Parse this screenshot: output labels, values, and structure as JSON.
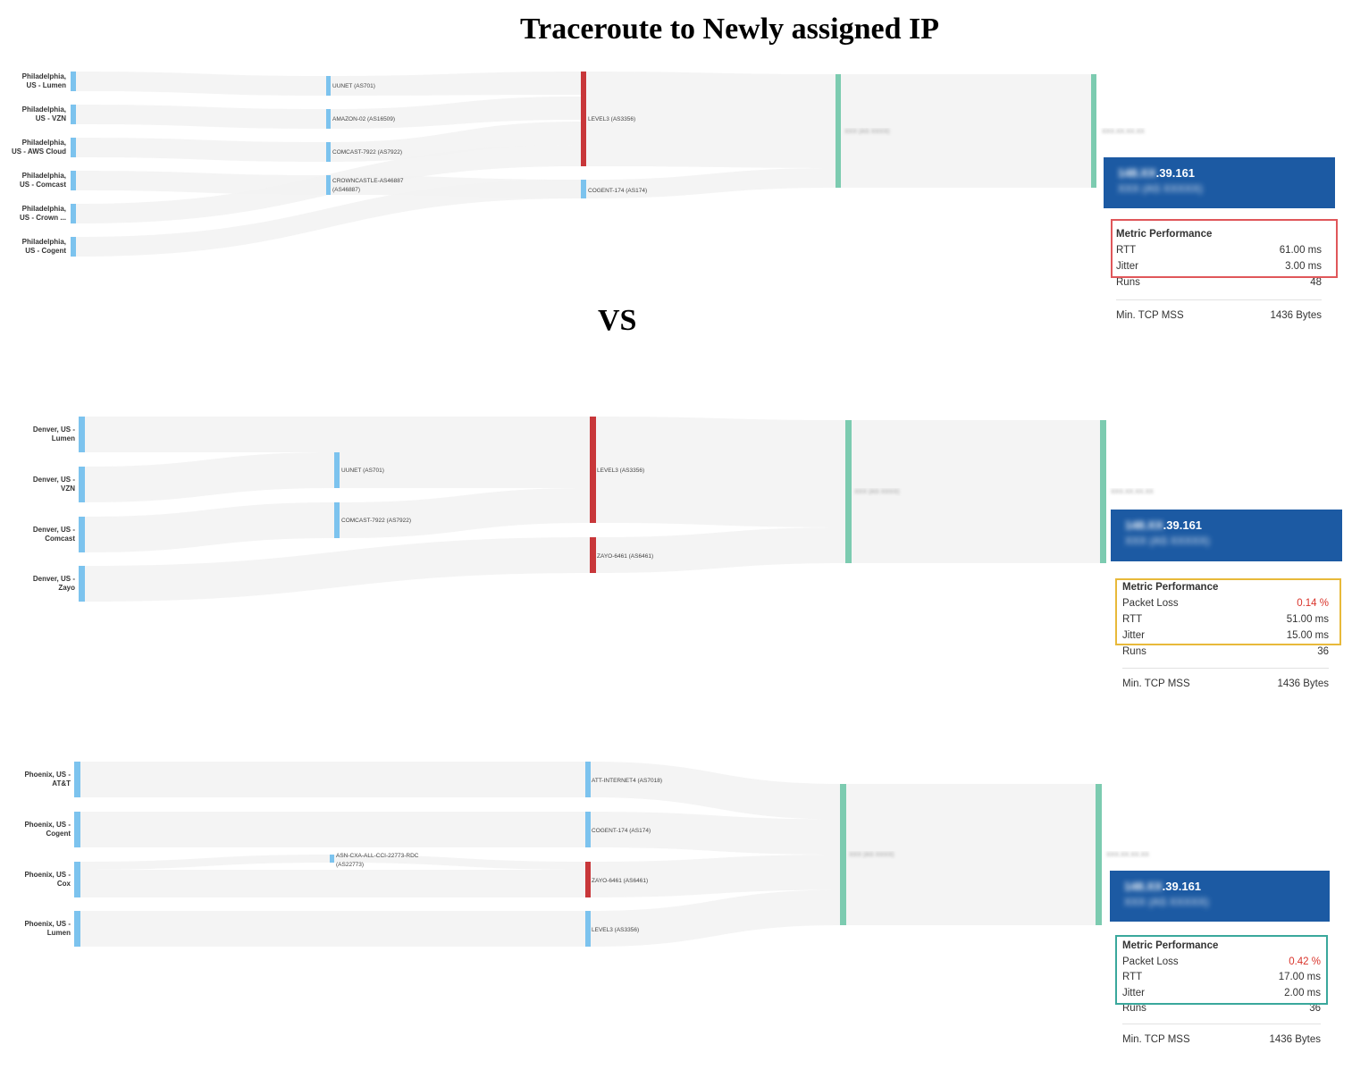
{
  "title": "Traceroute to Newly assigned IP",
  "vs": "VS",
  "colors": {
    "source": "#7cc3ee",
    "hop_red": "#c8373a",
    "hop_blue": "#7cc3ee",
    "hop_teal": "#7ccbb0",
    "flow": "#f2f2f2",
    "ip_box": "#1c5aa3",
    "loss": "#d9342b"
  },
  "panels": [
    {
      "id": "philadelphia",
      "sources": [
        "Philadelphia,\nUS - Lumen",
        "Philadelphia,\nUS - VZN",
        "Philadelphia,\nUS - AWS Cloud",
        "Philadelphia,\nUS - Comcast",
        "Philadelphia,\nUS - Crown ...",
        "Philadelphia,\nUS - Cogent"
      ],
      "hop1": [
        "UUNET (AS701)",
        "AMAZON-02 (AS16509)",
        "COMCAST-7922 (AS7922)",
        "CROWNCASTLE-AS46887\n(AS46887)"
      ],
      "hop2": [
        "LEVEL3 (AS3356)",
        "COGENT-174 (AS174)"
      ],
      "hop3_label": "XXX (AS XXXX)",
      "hop4_label": "XXX.XX.XX.XX",
      "ip": {
        "visible": ".39.161",
        "hidden_prefix": "148.XX",
        "asn": "XXX (AS XXXXX)"
      },
      "metrics": {
        "heading": "Metric Performance",
        "rows": [
          {
            "label": "RTT",
            "value": "61.00 ms"
          },
          {
            "label": "Jitter",
            "value": "3.00 ms"
          },
          {
            "label": "Runs",
            "value": "48"
          },
          {
            "label": "Min. TCP MSS",
            "value": "1436 Bytes"
          }
        ],
        "highlight_color": "#e0575a"
      }
    },
    {
      "id": "denver",
      "sources": [
        "Denver, US -\nLumen",
        "Denver, US -\nVZN",
        "Denver, US -\nComcast",
        "Denver, US -\nZayo"
      ],
      "hop1": [
        "UUNET (AS701)",
        "COMCAST-7922 (AS7922)"
      ],
      "hop2": [
        "LEVEL3 (AS3356)",
        "ZAYO-6461 (AS6461)"
      ],
      "hop3_label": "XXX (AS XXXX)",
      "hop4_label": "XXX.XX.XX.XX",
      "ip": {
        "visible": ".39.161",
        "hidden_prefix": "148.XX",
        "asn": "XXX (AS XXXXX)"
      },
      "metrics": {
        "heading": "Metric Performance",
        "rows": [
          {
            "label": "Packet Loss",
            "value": "0.14 %",
            "loss": true
          },
          {
            "label": "RTT",
            "value": "51.00 ms"
          },
          {
            "label": "Jitter",
            "value": "15.00 ms"
          },
          {
            "label": "Runs",
            "value": "36"
          },
          {
            "label": "Min. TCP MSS",
            "value": "1436 Bytes"
          }
        ],
        "highlight_color": "#e8b93a"
      }
    },
    {
      "id": "phoenix",
      "sources": [
        "Phoenix, US -\nAT&T",
        "Phoenix, US -\nCogent",
        "Phoenix, US -\nCox",
        "Phoenix, US -\nLumen"
      ],
      "hop1": [
        "ASN-CXA-ALL-CCI-22773-RDC\n(AS22773)"
      ],
      "hop2": [
        "ATT-INTERNET4 (AS7018)",
        "COGENT-174 (AS174)",
        "ZAYO-6461 (AS6461)",
        "LEVEL3 (AS3356)"
      ],
      "hop3_label": "XXX (AS XXXX)",
      "hop4_label": "XXX.XX.XX.XX",
      "ip": {
        "visible": ".39.161",
        "hidden_prefix": "148.XX",
        "asn": "XXX (AS XXXXX)"
      },
      "metrics": {
        "heading": "Metric Performance",
        "rows": [
          {
            "label": "Packet Loss",
            "value": "0.42 %",
            "loss": true
          },
          {
            "label": "RTT",
            "value": "17.00 ms"
          },
          {
            "label": "Jitter",
            "value": "2.00 ms"
          },
          {
            "label": "Runs",
            "value": "36"
          },
          {
            "label": "Min. TCP MSS",
            "value": "1436 Bytes"
          }
        ],
        "highlight_color": "#3aa89c"
      }
    }
  ]
}
